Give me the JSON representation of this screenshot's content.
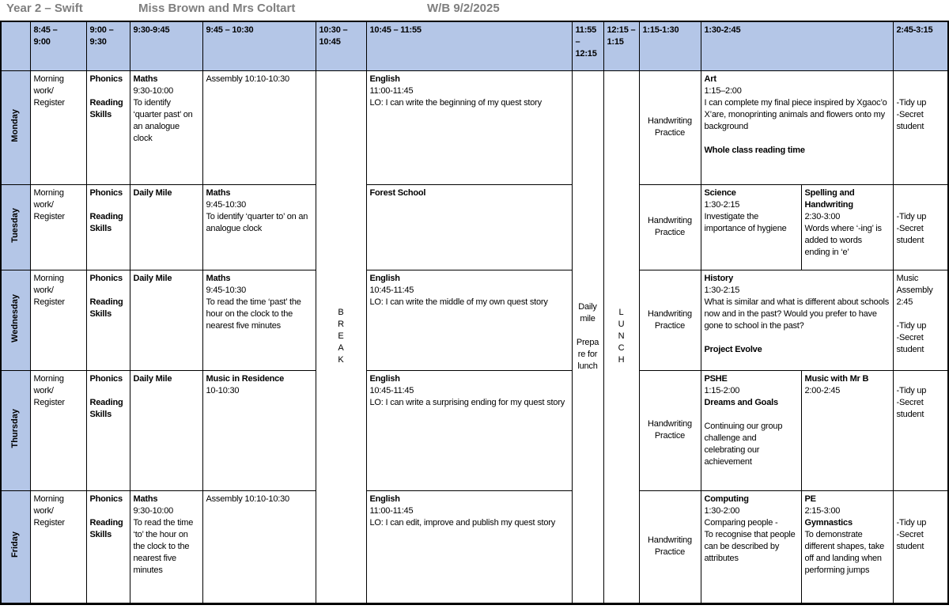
{
  "colors": {
    "header_blue": "#b4c6e7",
    "title_gray": "#7f7f7f",
    "border": "#000000"
  },
  "title": {
    "class_name": "Year 2 – Swift",
    "teachers": "Miss Brown and Mrs Coltart",
    "week": "W/B 9/2/2025"
  },
  "header": {
    "times": [
      "8:45 –\n9:00",
      "9:00 –\n9:30",
      "9:30-9:45",
      "9:45 – 10:30",
      "10:30 –\n10:45",
      "10:45 – 11:55",
      "11:55 – 12:15",
      "12:15 – 1:15",
      "1:15-1:30",
      "1:30-2:45",
      "2:45-3:15"
    ]
  },
  "merged": {
    "break_label": "B\nR\nE\nA\nK",
    "daily_mile_label": "Daily mile\n\nPrepare for lunch",
    "lunch_label": "L\nU\nN\nC\nH"
  },
  "days": [
    {
      "name": "Monday",
      "morning": [
        {
          "t": "Morning work/ Register"
        }
      ],
      "phonics": [
        {
          "t": "Phonics",
          "b": 1
        },
        {
          "t": ""
        },
        {
          "t": "Reading Skills",
          "b": 1
        }
      ],
      "slot3": [
        {
          "t": "Maths",
          "b": 1
        },
        {
          "t": "9:30-10:00"
        },
        {
          "t": "To identify ‘quarter past’ on an analogue clock"
        }
      ],
      "slot4": [
        {
          "t": "Assembly 10:10-10:30"
        }
      ],
      "english": [
        {
          "t": "English",
          "b": 1
        },
        {
          "t": "11:00-11:45"
        },
        {
          "t": "LO: I can write the beginning of my quest story"
        }
      ],
      "handwriting": "Handwriting Practice",
      "pm_full": [
        {
          "t": "Art",
          "b": 1
        },
        {
          "t": "1:15–2:00"
        },
        {
          "t": "I can complete my final piece inspired by Xgaoc’o X’are, monoprinting animals and flowers onto my background"
        },
        {
          "t": ""
        },
        {
          "t": "Whole class reading time",
          "b": 1
        }
      ],
      "end": [
        {
          "t": ""
        },
        {
          "t": ""
        },
        {
          "t": "-Tidy up"
        },
        {
          "t": "-Secret student"
        }
      ]
    },
    {
      "name": "Tuesday",
      "morning": [
        {
          "t": "Morning work/ Register"
        }
      ],
      "phonics": [
        {
          "t": "Phonics",
          "b": 1
        },
        {
          "t": ""
        },
        {
          "t": "Reading Skills",
          "b": 1
        }
      ],
      "slot3": [
        {
          "t": "Daily Mile",
          "b": 1
        }
      ],
      "slot4": [
        {
          "t": "Maths",
          "b": 1
        },
        {
          "t": "9:45-10:30"
        },
        {
          "t": "To identify ‘quarter to’ on an analogue clock"
        }
      ],
      "english": [
        {
          "t": "Forest School",
          "b": 1
        }
      ],
      "handwriting": "Handwriting Practice",
      "pm_left": [
        {
          "t": "Science",
          "b": 1
        },
        {
          "t": "1:30-2:15"
        },
        {
          "t": "Investigate the importance of hygiene"
        }
      ],
      "pm_right": [
        {
          "t": "Spelling and Handwriting",
          "b": 1
        },
        {
          "t": "2:30-3:00"
        },
        {
          "t": "Words where ‘-ing’ is added to words ending in ‘e’"
        }
      ],
      "end": [
        {
          "t": ""
        },
        {
          "t": ""
        },
        {
          "t": "-Tidy up"
        },
        {
          "t": "-Secret student"
        }
      ]
    },
    {
      "name": "Wednesday",
      "morning": [
        {
          "t": "Morning work/ Register"
        }
      ],
      "phonics": [
        {
          "t": "Phonics",
          "b": 1
        },
        {
          "t": ""
        },
        {
          "t": "Reading Skills",
          "b": 1
        }
      ],
      "slot3": [
        {
          "t": "Daily Mile",
          "b": 1
        }
      ],
      "slot4": [
        {
          "t": "Maths",
          "b": 1
        },
        {
          "t": "9:45-10:30"
        },
        {
          "t": "To read the time ‘past’ the hour on the clock to the nearest five minutes"
        }
      ],
      "english": [
        {
          "t": "English",
          "b": 1
        },
        {
          "t": "10:45-11:45"
        },
        {
          "t": "LO: I can write the middle of my own quest story"
        }
      ],
      "handwriting": "Handwriting Practice",
      "pm_full": [
        {
          "t": "History",
          "b": 1
        },
        {
          "t": "1:30-2:15"
        },
        {
          "t": "What is similar and what is different about schools now and in the past? Would you prefer to have gone to school in the past?"
        },
        {
          "t": ""
        },
        {
          "t": "Project Evolve",
          "b": 1
        }
      ],
      "end": [
        {
          "t": "Music Assembly 2:45"
        },
        {
          "t": ""
        },
        {
          "t": "-Tidy up"
        },
        {
          "t": "-Secret student"
        }
      ]
    },
    {
      "name": "Thursday",
      "morning": [
        {
          "t": "Morning work/ Register"
        }
      ],
      "phonics": [
        {
          "t": "Phonics",
          "b": 1
        },
        {
          "t": ""
        },
        {
          "t": "Reading Skills",
          "b": 1
        }
      ],
      "slot3": [
        {
          "t": "Daily Mile",
          "b": 1
        }
      ],
      "slot4": [
        {
          "t": "Music in Residence",
          "b": 1
        },
        {
          "t": "10-10:30"
        }
      ],
      "english": [
        {
          "t": "English",
          "b": 1
        },
        {
          "t": "10:45-11:45"
        },
        {
          "t": "LO: I can write a surprising ending for my quest story"
        }
      ],
      "handwriting": "Handwriting Practice",
      "pm_left": [
        {
          "t": "PSHE",
          "b": 1
        },
        {
          "t": "1:15-2:00"
        },
        {
          "t": "Dreams and Goals",
          "b": 1
        },
        {
          "t": ""
        },
        {
          "t": "Continuing our group challenge and celebrating our achievement"
        }
      ],
      "pm_right": [
        {
          "t": "Music with Mr B",
          "b": 1
        },
        {
          "t": "2:00-2:45"
        }
      ],
      "end": [
        {
          "t": ""
        },
        {
          "t": "-Tidy up"
        },
        {
          "t": "-Secret student"
        }
      ]
    },
    {
      "name": "Friday",
      "morning": [
        {
          "t": "Morning work/ Register"
        }
      ],
      "phonics": [
        {
          "t": "Phonics",
          "b": 1
        },
        {
          "t": ""
        },
        {
          "t": "Reading Skills",
          "b": 1
        }
      ],
      "slot3": [
        {
          "t": "Maths",
          "b": 1
        },
        {
          "t": "9:30-10:00"
        },
        {
          "t": "To read the time ‘to’ the hour on the clock to the nearest five minutes"
        }
      ],
      "slot4": [
        {
          "t": "Assembly 10:10-10:30"
        }
      ],
      "english": [
        {
          "t": "English",
          "b": 1
        },
        {
          "t": "11:00-11:45"
        },
        {
          "t": "LO: I can edit, improve and publish my quest story"
        }
      ],
      "handwriting": "Handwriting Practice",
      "pm_left": [
        {
          "t": "Computing",
          "b": 1
        },
        {
          "t": "1:30-2:00"
        },
        {
          "t": "Comparing people -"
        },
        {
          "t": "To recognise that people can be described by attributes"
        }
      ],
      "pm_right": [
        {
          "t": "PE",
          "b": 1
        },
        {
          "t": "2:15-3:00"
        },
        {
          "t": "Gymnastics",
          "b": 1
        },
        {
          "t": "To demonstrate different shapes, take off and landing when performing jumps"
        }
      ],
      "end": [
        {
          "t": ""
        },
        {
          "t": ""
        },
        {
          "t": "-Tidy up"
        },
        {
          "t": "-Secret student"
        }
      ]
    }
  ]
}
